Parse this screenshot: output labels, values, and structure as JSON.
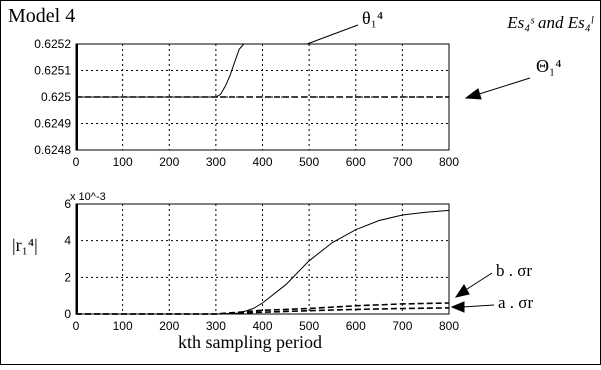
{
  "figure": {
    "title": "Model 4",
    "corner_label": "Es₄ˢ and Es₄ˡ",
    "theta_annotation": "θ₁⁴",
    "big_theta_annotation": "Θ₁⁴",
    "r_ylabel": "|r₁⁴|",
    "b_sigma_annotation": "b . σr",
    "a_sigma_annotation": "a . σr",
    "xlabel": "kth sampling period",
    "exponent_label": "x 10^-3"
  },
  "chart_data": [
    {
      "type": "line",
      "xlim": [
        0,
        800
      ],
      "ylim": [
        0.6248,
        0.6252
      ],
      "grid": true,
      "x_ticks": [
        "0",
        "100",
        "200",
        "300",
        "400",
        "500",
        "600",
        "700",
        "800"
      ],
      "y_ticks": [
        "0.6248",
        "0.6249",
        "0.625",
        "0.6251",
        "0.6252"
      ],
      "series": [
        {
          "name": "θ₁⁴",
          "style": "solid",
          "x": [
            0,
            300,
            310,
            320,
            330,
            340,
            350,
            360
          ],
          "y": [
            0.625,
            0.625,
            0.62501,
            0.62504,
            0.62508,
            0.62513,
            0.62518,
            0.6252
          ]
        },
        {
          "name": "Θ₁⁴",
          "style": "dashed",
          "x": [
            0,
            800
          ],
          "y": [
            0.625,
            0.625
          ]
        }
      ]
    },
    {
      "type": "line",
      "xlim": [
        0,
        800
      ],
      "ylim": [
        0,
        6
      ],
      "y_scale_label": "x 10^-3",
      "grid": true,
      "x_ticks": [
        "0",
        "100",
        "200",
        "300",
        "400",
        "500",
        "600",
        "700",
        "800"
      ],
      "y_ticks": [
        "0",
        "2",
        "4",
        "6"
      ],
      "series": [
        {
          "name": "|r₁⁴|",
          "style": "solid",
          "x": [
            0,
            300,
            350,
            380,
            400,
            450,
            500,
            550,
            600,
            650,
            700,
            750,
            800
          ],
          "y": [
            0,
            0,
            0.05,
            0.3,
            0.6,
            1.6,
            2.9,
            3.9,
            4.6,
            5.1,
            5.4,
            5.55,
            5.65
          ]
        },
        {
          "name": "b . σr",
          "style": "dashed",
          "x": [
            0,
            300,
            400,
            500,
            600,
            700,
            800
          ],
          "y": [
            0,
            0,
            0.2,
            0.3,
            0.45,
            0.55,
            0.6
          ]
        },
        {
          "name": "a . σr",
          "style": "dashed",
          "x": [
            0,
            300,
            400,
            500,
            600,
            700,
            800
          ],
          "y": [
            0,
            0,
            0.1,
            0.18,
            0.25,
            0.3,
            0.33
          ]
        }
      ]
    }
  ]
}
